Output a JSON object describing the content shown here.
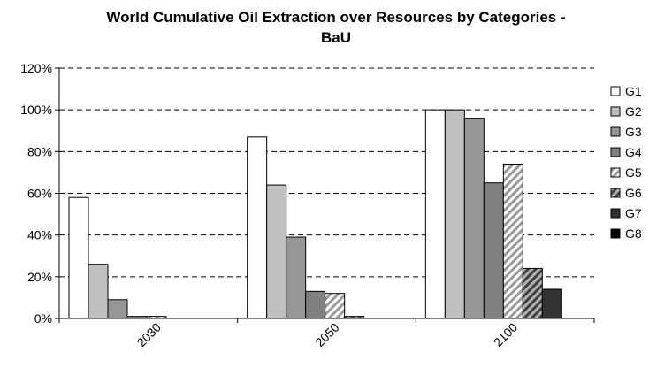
{
  "chart_data": {
    "type": "bar",
    "title_lines": [
      "World Cumulative Oil Extraction over Resources by Categories -",
      "BaU"
    ],
    "xlabel": "",
    "ylabel": "",
    "categories": [
      "2030",
      "2050",
      "2100"
    ],
    "ylim": [
      0,
      120
    ],
    "yticks": [
      "0%",
      "20%",
      "40%",
      "60%",
      "80%",
      "100%",
      "120%"
    ],
    "grid": "dashed horizontal",
    "legend_position": "right",
    "series": [
      {
        "name": "G1",
        "values": [
          58,
          87,
          100
        ],
        "fill": "#ffffff",
        "pattern": "none"
      },
      {
        "name": "G2",
        "values": [
          26,
          64,
          100
        ],
        "fill": "#c0c0c0",
        "pattern": "none"
      },
      {
        "name": "G3",
        "values": [
          9,
          39,
          96
        ],
        "fill": "#969696",
        "pattern": "none"
      },
      {
        "name": "G4",
        "values": [
          1,
          13,
          65
        ],
        "fill": "#808080",
        "pattern": "none"
      },
      {
        "name": "G5",
        "values": [
          1,
          12,
          74
        ],
        "fill": "#ffffff",
        "pattern": "diagonal-light"
      },
      {
        "name": "G6",
        "values": [
          0,
          1,
          24
        ],
        "fill": "#ffffff",
        "pattern": "diagonal-dark"
      },
      {
        "name": "G7",
        "values": [
          0,
          0,
          14
        ],
        "fill": "#333333",
        "pattern": "none"
      },
      {
        "name": "G8",
        "values": [
          0,
          0,
          0
        ],
        "fill": "#000000",
        "pattern": "none"
      }
    ]
  }
}
